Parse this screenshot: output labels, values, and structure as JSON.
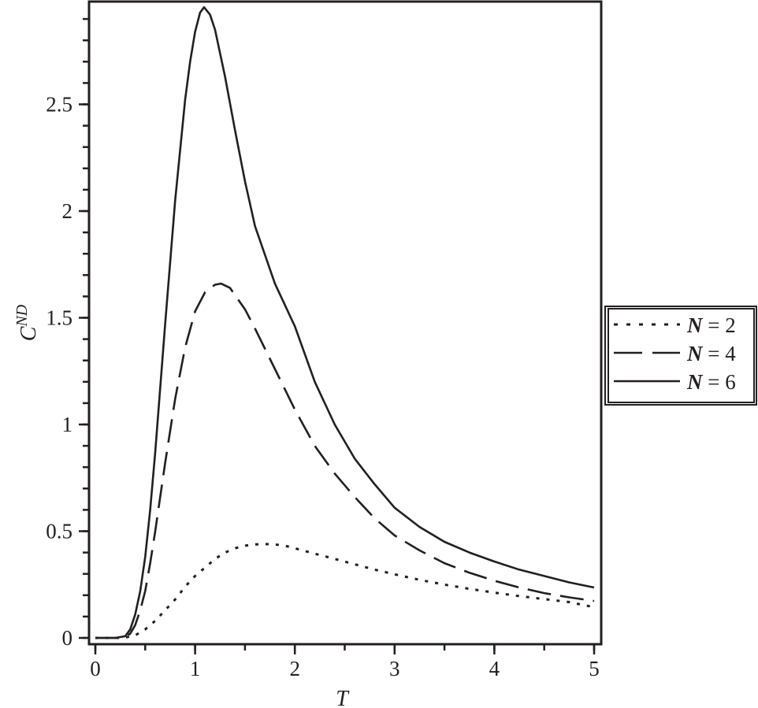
{
  "chart_data": {
    "type": "line",
    "title": "",
    "xlabel": "T",
    "ylabel": "C",
    "ylabel_superscript": "ND",
    "xlim": [
      0,
      5
    ],
    "ylim": [
      0,
      2.97
    ],
    "x_ticks": [
      0,
      1,
      2,
      3,
      4,
      5
    ],
    "x_tick_labels": [
      "0",
      "1",
      "2",
      "3",
      "4",
      "5"
    ],
    "x_minor_step": 0.5,
    "y_ticks": [
      0,
      0.5,
      1,
      1.5,
      2,
      2.5
    ],
    "y_tick_labels": [
      "0",
      "0.5",
      "1",
      "1.5",
      "2",
      "2.5"
    ],
    "y_minor_step": 0.1,
    "grid": false,
    "legend_position": "right",
    "series": [
      {
        "name": "N = 2",
        "legend_var": "N",
        "legend_value": "= 2",
        "style": "dotted",
        "x": [
          0.0,
          0.2,
          0.3,
          0.4,
          0.5,
          0.6,
          0.7,
          0.8,
          0.9,
          1.0,
          1.1,
          1.2,
          1.3,
          1.4,
          1.5,
          1.6,
          1.7,
          1.8,
          1.9,
          2.0,
          2.2,
          2.4,
          2.6,
          2.8,
          3.0,
          3.25,
          3.5,
          3.75,
          4.0,
          4.25,
          4.5,
          4.75,
          5.0
        ],
        "values": [
          0.0,
          0.0,
          0.002,
          0.012,
          0.04,
          0.08,
          0.13,
          0.18,
          0.24,
          0.29,
          0.33,
          0.37,
          0.4,
          0.42,
          0.432,
          0.438,
          0.44,
          0.438,
          0.432,
          0.42,
          0.395,
          0.37,
          0.345,
          0.32,
          0.298,
          0.272,
          0.25,
          0.23,
          0.212,
          0.196,
          0.182,
          0.168,
          0.144
        ]
      },
      {
        "name": "N = 4",
        "legend_var": "N",
        "legend_value": "= 4",
        "style": "dashed",
        "x": [
          0.0,
          0.2,
          0.3,
          0.35,
          0.4,
          0.45,
          0.5,
          0.55,
          0.6,
          0.7,
          0.8,
          0.9,
          1.0,
          1.1,
          1.2,
          1.26,
          1.35,
          1.5,
          1.6,
          1.8,
          2.0,
          2.2,
          2.4,
          2.6,
          2.8,
          3.0,
          3.25,
          3.5,
          3.75,
          4.0,
          4.25,
          4.5,
          4.75,
          5.0
        ],
        "values": [
          0.0,
          0.0,
          0.005,
          0.02,
          0.06,
          0.13,
          0.22,
          0.35,
          0.5,
          0.82,
          1.12,
          1.36,
          1.53,
          1.62,
          1.655,
          1.66,
          1.64,
          1.54,
          1.45,
          1.26,
          1.07,
          0.9,
          0.77,
          0.66,
          0.56,
          0.48,
          0.41,
          0.35,
          0.305,
          0.268,
          0.236,
          0.21,
          0.19,
          0.173
        ]
      },
      {
        "name": "N = 6",
        "legend_var": "N",
        "legend_value": "= 6",
        "style": "solid",
        "x": [
          0.0,
          0.2,
          0.3,
          0.35,
          0.4,
          0.45,
          0.5,
          0.55,
          0.6,
          0.7,
          0.8,
          0.9,
          0.95,
          1.0,
          1.05,
          1.09,
          1.15,
          1.2,
          1.3,
          1.4,
          1.5,
          1.6,
          1.8,
          2.0,
          2.2,
          2.4,
          2.6,
          2.8,
          3.0,
          3.25,
          3.5,
          3.75,
          4.0,
          4.25,
          4.5,
          4.75,
          5.0
        ],
        "values": [
          0.0,
          0.0,
          0.008,
          0.04,
          0.11,
          0.22,
          0.38,
          0.6,
          0.87,
          1.47,
          2.05,
          2.52,
          2.7,
          2.84,
          2.93,
          2.955,
          2.92,
          2.85,
          2.63,
          2.38,
          2.14,
          1.93,
          1.66,
          1.46,
          1.2,
          1.0,
          0.84,
          0.72,
          0.61,
          0.52,
          0.45,
          0.4,
          0.358,
          0.32,
          0.29,
          0.26,
          0.236
        ]
      }
    ]
  }
}
